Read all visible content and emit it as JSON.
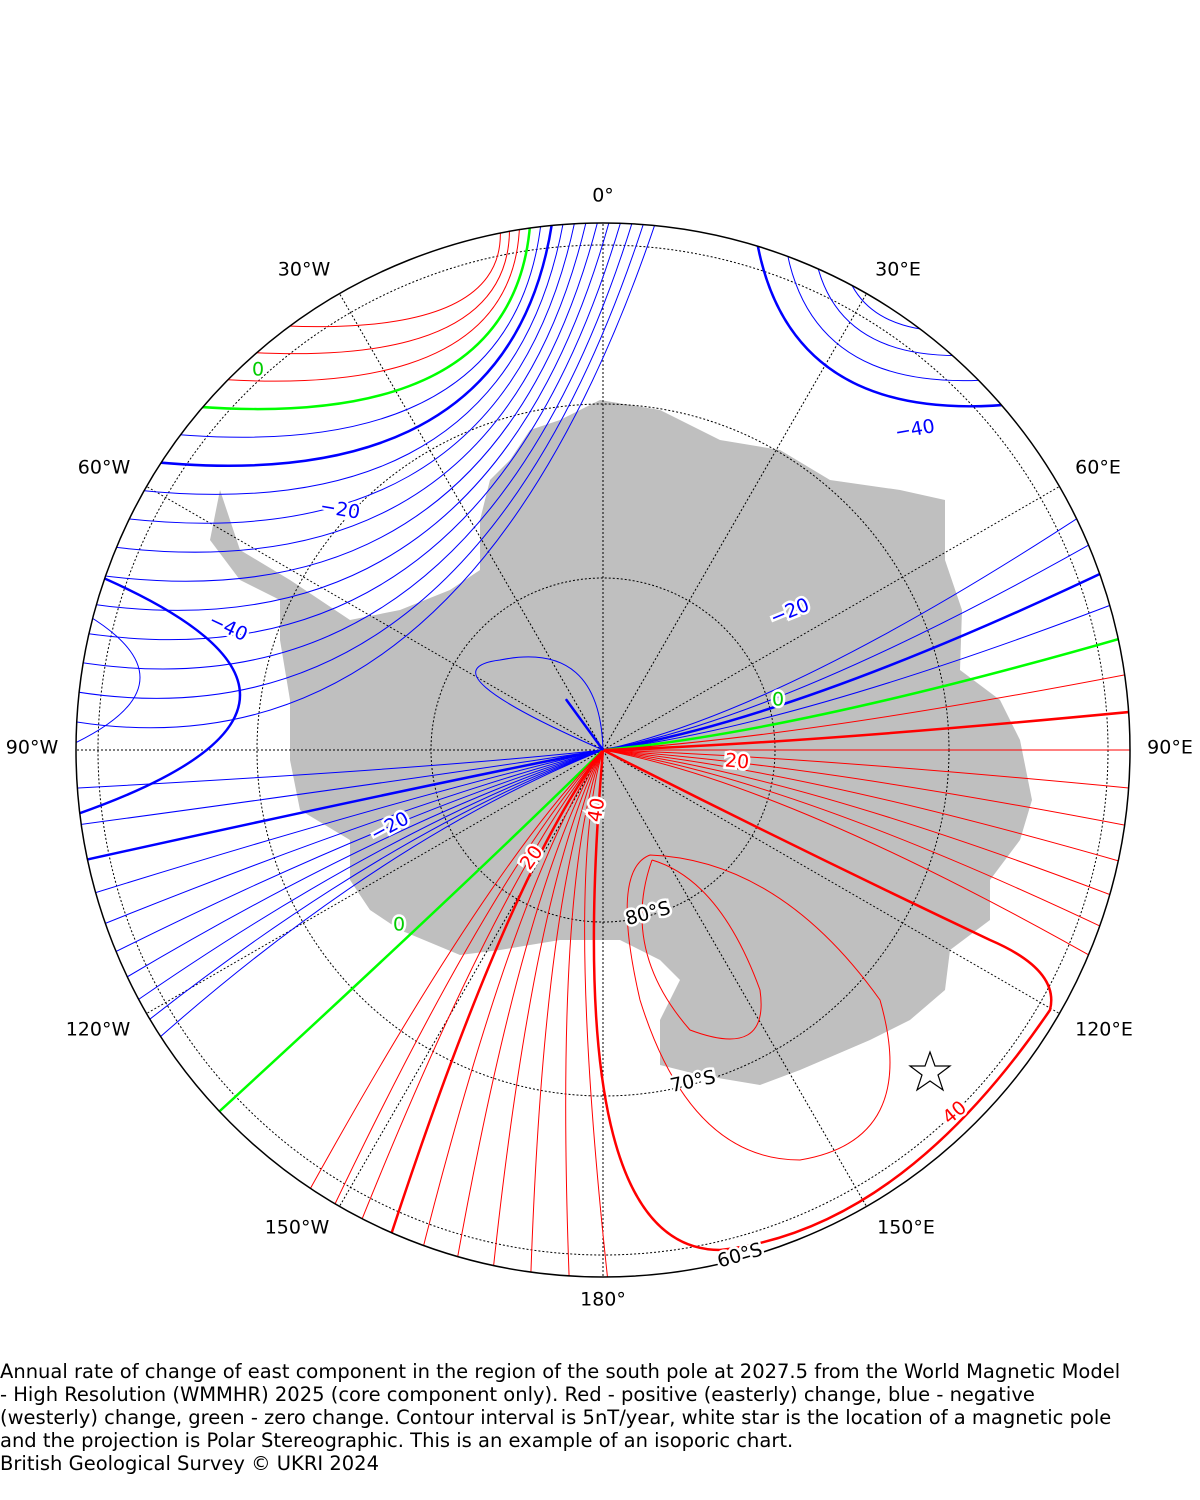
{
  "map": {
    "longitude_labels": [
      "0°",
      "30°E",
      "60°E",
      "90°E",
      "120°E",
      "150°E",
      "180°",
      "150°W",
      "120°W",
      "90°W",
      "60°W",
      "30°W"
    ],
    "latitude_labels": [
      "80°S",
      "70°S",
      "60°S"
    ],
    "contour_labels": [
      "−40",
      "−20",
      "−40",
      "−20",
      "0",
      "0",
      "20",
      "−20",
      "40",
      "20",
      "0",
      "40"
    ]
  },
  "caption": {
    "lines": [
      "Annual rate of change of east component in the region of the south pole at 2027.5 from the World Magnetic Model",
      "- High Resolution (WMMHR) 2025 (core component only). Red - positive (easterly) change, blue - negative",
      "(westerly) change, green - zero change. Contour interval is 5nT/year, white star is the location of a magnetic pole",
      "and the projection is Polar Stereographic. This is an example of an isoporic chart."
    ],
    "credit": "British Geological Survey © UKRI 2024"
  }
}
